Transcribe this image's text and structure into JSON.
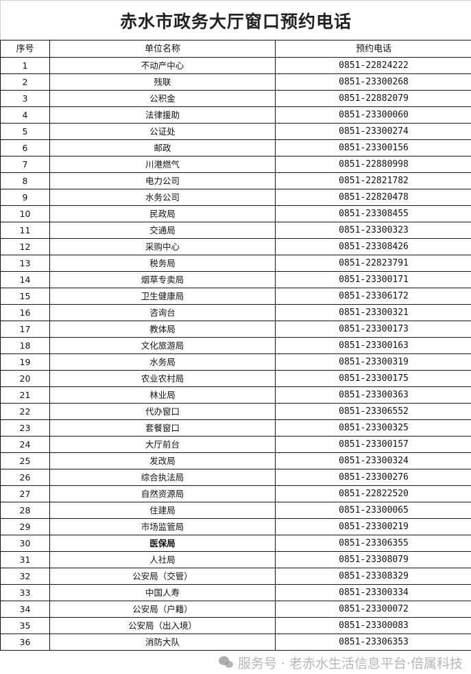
{
  "title": "赤水市政务大厅窗口预约电话",
  "headers": [
    "序号",
    "单位名称",
    "预约电话"
  ],
  "rows": [
    {
      "no": "1",
      "name": "不动产中心",
      "phone": "0851-22824222"
    },
    {
      "no": "2",
      "name": "残联",
      "phone": "0851-23300268"
    },
    {
      "no": "3",
      "name": "公积金",
      "phone": "0851-22882079"
    },
    {
      "no": "4",
      "name": "法律援助",
      "phone": "0851-23300060"
    },
    {
      "no": "5",
      "name": "公证处",
      "phone": "0851-23300274"
    },
    {
      "no": "6",
      "name": "邮政",
      "phone": "0851-23300156"
    },
    {
      "no": "7",
      "name": "川港燃气",
      "phone": "0851-22880998"
    },
    {
      "no": "8",
      "name": "电力公司",
      "phone": "0851-22821782"
    },
    {
      "no": "9",
      "name": "水务公司",
      "phone": "0851-22820478"
    },
    {
      "no": "10",
      "name": "民政局",
      "phone": "0851-23308455"
    },
    {
      "no": "11",
      "name": "交通局",
      "phone": "0851-23300323"
    },
    {
      "no": "12",
      "name": "采购中心",
      "phone": "0851-23308426"
    },
    {
      "no": "13",
      "name": "税务局",
      "phone": "0851-22823791"
    },
    {
      "no": "14",
      "name": "烟草专卖局",
      "phone": "0851-23300171"
    },
    {
      "no": "15",
      "name": "卫生健康局",
      "phone": "0851-23306172"
    },
    {
      "no": "16",
      "name": "咨询台",
      "phone": "0851-23300321"
    },
    {
      "no": "17",
      "name": "教体局",
      "phone": "0851-23300173"
    },
    {
      "no": "18",
      "name": "文化旅游局",
      "phone": "0851-23300163"
    },
    {
      "no": "19",
      "name": "水务局",
      "phone": "0851-23300319"
    },
    {
      "no": "20",
      "name": "农业农村局",
      "phone": "0851-23300175"
    },
    {
      "no": "21",
      "name": "林业局",
      "phone": "0851-23300363"
    },
    {
      "no": "22",
      "name": "代办窗口",
      "phone": "0851-23306552"
    },
    {
      "no": "23",
      "name": "套餐窗口",
      "phone": "0851-23300325"
    },
    {
      "no": "24",
      "name": "大厅前台",
      "phone": "0851-23300157"
    },
    {
      "no": "25",
      "name": "发改局",
      "phone": "0851-23300324"
    },
    {
      "no": "26",
      "name": "综合执法局",
      "phone": "0851-23300276"
    },
    {
      "no": "27",
      "name": "自然资源局",
      "phone": "0851-22822520"
    },
    {
      "no": "28",
      "name": "住建局",
      "phone": "0851-23300065"
    },
    {
      "no": "29",
      "name": "市场监管局",
      "phone": "0851-23300219"
    },
    {
      "no": "30",
      "name": "医保局",
      "phone": "0851-23306355",
      "bold": true
    },
    {
      "no": "31",
      "name": "人社局",
      "phone": "0851-23308079"
    },
    {
      "no": "32",
      "name": "公安局（交管）",
      "phone": "0851-23308329"
    },
    {
      "no": "33",
      "name": "中国人寿",
      "phone": "0851-23300334"
    },
    {
      "no": "34",
      "name": "公安局（户籍）",
      "phone": "0851-23300072"
    },
    {
      "no": "35",
      "name": "公安局（出入境）",
      "phone": "0851-23300083"
    },
    {
      "no": "36",
      "name": "消防大队",
      "phone": "0851-23306353"
    }
  ],
  "watermark": {
    "icon": "wechat-icon",
    "text": "服务号 · 老赤水生活信息平台·倍属科技"
  }
}
